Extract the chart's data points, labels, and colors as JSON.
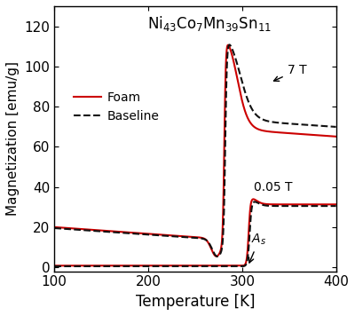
{
  "xlabel": "Temperature [K]",
  "ylabel": "Magnetization [emu/g]",
  "xlim": [
    100,
    400
  ],
  "ylim": [
    -2,
    130
  ],
  "yticks": [
    0,
    20,
    40,
    60,
    80,
    100,
    120
  ],
  "xticks": [
    100,
    200,
    300,
    400
  ],
  "foam_color": "#cc0000",
  "baseline_color": "#111111",
  "background_color": "#ffffff",
  "legend_foam": "Foam",
  "legend_baseline": "Baseline",
  "annotation_7T": "7 T",
  "annotation_005T": "0.05 T",
  "annotation_As": "$A_s$",
  "title_text": "Ni$_{43}$Co$_{7}$Mn$_{39}$Sn$_{11}$"
}
